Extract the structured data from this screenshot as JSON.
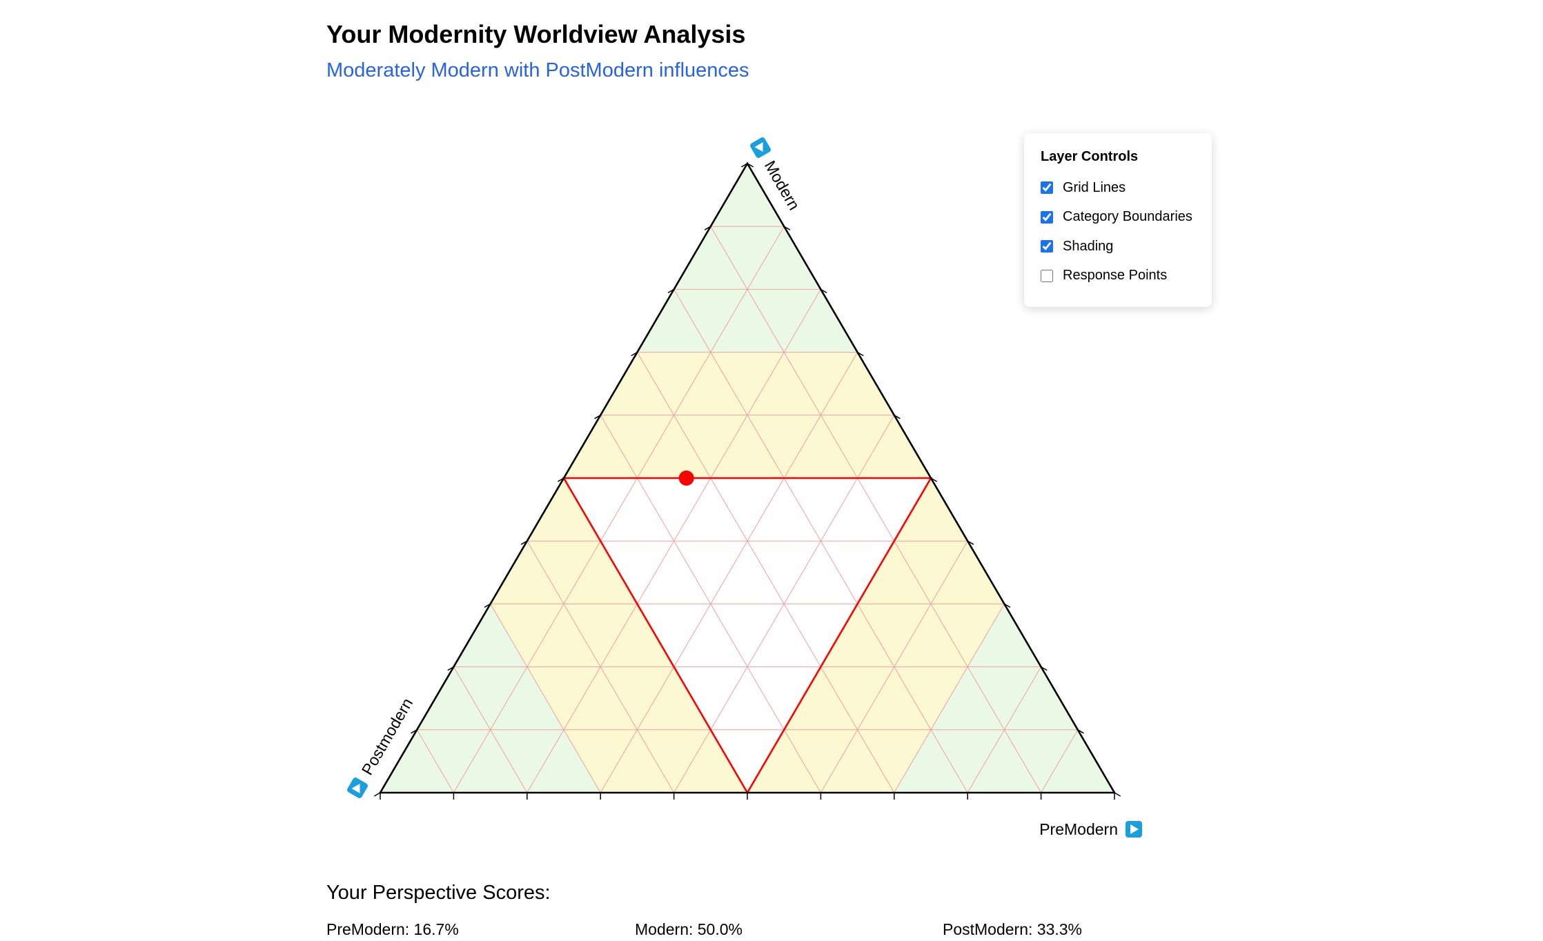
{
  "header": {
    "title": "Your Modernity Worldview Analysis",
    "subtitle": "Moderately Modern with PostModern influences"
  },
  "ternary": {
    "axes": {
      "modern": "Modern",
      "postmodern": "Postmodern",
      "premodern": "PreModern"
    },
    "grid_divisions": 10,
    "user_point": {
      "premodern": 0.167,
      "modern": 0.5,
      "postmodern": 0.333
    },
    "colors": {
      "grid": "#f4a0a0",
      "boundary": "#ff0000",
      "point": "#ff0000",
      "outline": "#000000",
      "shade_green": "#eaf8e6",
      "shade_yellow": "#fbf8d2",
      "axis_icon": "#1a9fdd"
    }
  },
  "layer_controls": {
    "title": "Layer Controls",
    "options": [
      {
        "label": "Grid Lines",
        "checked": true
      },
      {
        "label": "Category Boundaries",
        "checked": true
      },
      {
        "label": "Shading",
        "checked": true
      },
      {
        "label": "Response Points",
        "checked": false
      }
    ]
  },
  "scores": {
    "heading": "Your Perspective Scores:",
    "items": [
      {
        "label": "PreModern: 16.7%"
      },
      {
        "label": "Modern: 50.0%"
      },
      {
        "label": "PostModern: 33.3%"
      }
    ]
  }
}
